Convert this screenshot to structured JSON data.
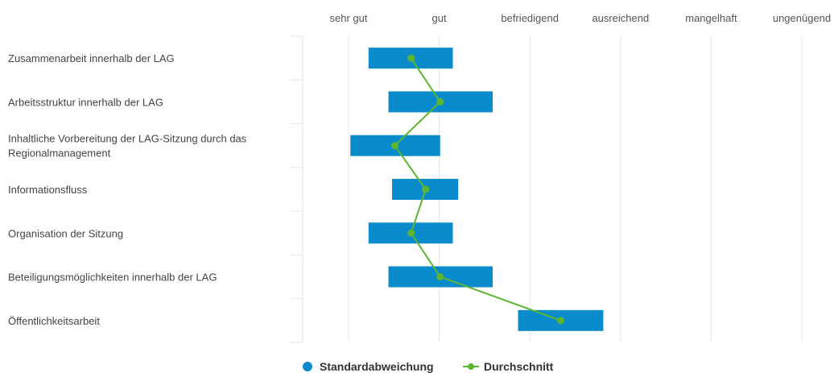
{
  "chart_data": {
    "type": "range-bar-with-line",
    "rating_scale": [
      "sehr gut",
      "gut",
      "befriedigend",
      "ausreichend",
      "mangelhaft",
      "ungenügend"
    ],
    "xlim": [
      0.5,
      6.0
    ],
    "categories": [
      "Zusammenarbeit innerhalb der LAG",
      "Arbeitsstruktur innerhalb der LAG",
      "Inhaltliche Vorbereitung der LAG-Sitzung durch das Regionalmanagement",
      "Informationsfluss",
      "Organisation der Sitzung",
      "Beteiligungsmöglichkeiten innerhalb der LAG",
      "Öffentlichkeitsarbeit"
    ],
    "category_lines": [
      [
        "Zusammenarbeit innerhalb der LAG"
      ],
      [
        "Arbeitsstruktur innerhalb der LAG"
      ],
      [
        "Inhaltliche Vorbereitung der LAG-Sitzung durch das",
        "Regionalmanagement"
      ],
      [
        "Informationsfluss"
      ],
      [
        "Organisation der Sitzung"
      ],
      [
        "Beteiligungsmöglichkeiten innerhalb der LAG"
      ],
      [
        "Öffentlichkeitsarbeit"
      ]
    ],
    "series": [
      {
        "name": "Standardabweichung",
        "kind": "range",
        "color": "#0a8ccc",
        "ranges": [
          [
            1.22,
            2.15
          ],
          [
            1.44,
            2.59
          ],
          [
            1.02,
            2.01
          ],
          [
            1.48,
            2.21
          ],
          [
            1.22,
            2.15
          ],
          [
            1.44,
            2.59
          ],
          [
            2.87,
            3.81
          ]
        ]
      },
      {
        "name": "Durchschnitt",
        "kind": "line",
        "color": "#5cb531",
        "values": [
          1.69,
          2.01,
          1.51,
          1.85,
          1.69,
          2.01,
          3.34
        ]
      }
    ],
    "legend_position": "bottom-center",
    "grid": true
  }
}
